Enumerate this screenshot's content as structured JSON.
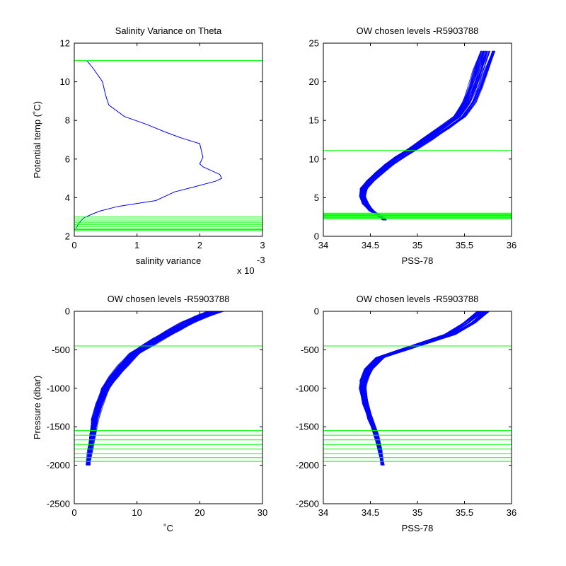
{
  "colors": {
    "profile": "#0000ff",
    "level": "#00ff00",
    "axis": "#000000",
    "background": "#ffffff"
  },
  "chart_data": [
    {
      "type": "line",
      "title": "Salinity Variance on Theta",
      "xlabel": "salinity variance",
      "ylabel": "Potential temp (˚C)",
      "x_multiplier": "x 10",
      "x_multiplier_exp": "-3",
      "xlim": [
        0,
        0.003
      ],
      "ylim": [
        2,
        12
      ],
      "xticks": [
        0,
        0.001,
        0.002,
        0.003
      ],
      "xtick_labels": [
        "0",
        "1",
        "2",
        "3"
      ],
      "yticks": [
        2,
        4,
        6,
        8,
        10,
        12
      ],
      "ytick_labels": [
        "2",
        "4",
        "6",
        "8",
        "10",
        "12"
      ],
      "grid": false,
      "series": [
        {
          "kind": "line",
          "x": [
            2e-05,
            8e-05,
            0.00015,
            0.00025,
            0.0004,
            0.0007,
            0.0011,
            0.0013,
            0.0016,
            0.0019,
            0.00225,
            0.00235,
            0.00232,
            0.00205,
            0.002,
            0.00205,
            0.002,
            0.0017,
            0.00145,
            0.00115,
            0.0008,
            0.00055,
            0.0005,
            0.00045,
            0.0003,
            0.0002
          ],
          "y": [
            2.4,
            2.7,
            2.95,
            3.1,
            3.3,
            3.55,
            3.75,
            3.85,
            4.3,
            4.55,
            4.85,
            5.0,
            5.2,
            5.6,
            5.75,
            6.1,
            6.8,
            7.1,
            7.4,
            7.8,
            8.2,
            8.8,
            9.3,
            10.0,
            10.7,
            11.1
          ]
        }
      ],
      "hlines": [
        11.1,
        3.0,
        2.9,
        2.8,
        2.7,
        2.6,
        2.5,
        2.4,
        2.35,
        2.3
      ]
    },
    {
      "type": "line",
      "title": "OW chosen levels -R5903788",
      "xlabel": "PSS-78",
      "ylabel": "",
      "xlim": [
        34,
        36
      ],
      "ylim": [
        0,
        25
      ],
      "xticks": [
        34,
        34.5,
        35,
        35.5,
        36
      ],
      "xtick_labels": [
        "34",
        "34.5",
        "35",
        "35.5",
        "36"
      ],
      "yticks": [
        0,
        5,
        10,
        15,
        20,
        25
      ],
      "ytick_labels": [
        "0",
        "5",
        "10",
        "15",
        "20",
        "25"
      ],
      "grid": false,
      "series": [
        {
          "kind": "profile-bundle",
          "x": [
            34.65,
            34.6,
            34.52,
            34.45,
            34.42,
            34.43,
            34.5,
            34.6,
            34.7,
            34.82,
            34.95,
            35.1,
            35.28,
            35.45,
            35.55,
            35.62,
            35.68,
            35.75
          ],
          "y": [
            2.1,
            2.6,
            3.3,
            4.2,
            5.2,
            6.2,
            7.2,
            8.3,
            9.3,
            10.3,
            11.3,
            12.5,
            14.0,
            15.5,
            17.3,
            19.3,
            21.5,
            24.0
          ],
          "profiles": 60,
          "jitter": 0.05
        }
      ],
      "hlines": [
        11.1,
        3.0,
        2.9,
        2.8,
        2.7,
        2.6,
        2.5,
        2.4,
        2.35,
        2.3
      ]
    },
    {
      "type": "line",
      "title": "OW chosen levels -R5903788",
      "xlabel": "˚C",
      "ylabel": "Pressure (dbar)",
      "xlim": [
        0,
        30
      ],
      "ylim": [
        -2500,
        0
      ],
      "xticks": [
        0,
        10,
        20,
        30
      ],
      "xtick_labels": [
        "0",
        "10",
        "20",
        "30"
      ],
      "yticks": [
        -2500,
        -2000,
        -1500,
        -1000,
        -500,
        0
      ],
      "ytick_labels": [
        "-2500",
        "-2000",
        "-1500",
        "-1000",
        "-500",
        "0"
      ],
      "grid": false,
      "series": [
        {
          "kind": "profile-bundle",
          "x": [
            2.2,
            2.5,
            2.9,
            3.3,
            4.0,
            5.0,
            6.3,
            7.8,
            9.5,
            11.5,
            13.5,
            15.8,
            18.0,
            20.5,
            22.5
          ],
          "y": [
            -2000,
            -1800,
            -1600,
            -1400,
            -1200,
            -1000,
            -850,
            -700,
            -550,
            -450,
            -350,
            -250,
            -150,
            -60,
            0
          ],
          "profiles": 60,
          "jitter": 0.8
        }
      ],
      "hlines": [
        -450,
        -1550,
        -1610,
        -1670,
        -1730,
        -1790,
        -1850,
        -1900,
        -1950
      ]
    },
    {
      "type": "line",
      "title": "OW chosen levels -R5903788",
      "xlabel": "PSS-78",
      "ylabel": "",
      "xlim": [
        34,
        36
      ],
      "ylim": [
        -2500,
        0
      ],
      "xticks": [
        34,
        34.5,
        35,
        35.5,
        36
      ],
      "xtick_labels": [
        "34",
        "34.5",
        "35",
        "35.5",
        "36"
      ],
      "yticks": [
        -2500,
        -2000,
        -1500,
        -1000,
        -500,
        0
      ],
      "ytick_labels": [
        "-2500",
        "-2000",
        "-1500",
        "-1000",
        "-500",
        "0"
      ],
      "grid": false,
      "series": [
        {
          "kind": "profile-bundle",
          "x": [
            34.63,
            34.6,
            34.56,
            34.5,
            34.45,
            34.42,
            34.43,
            34.48,
            34.6,
            34.85,
            35.1,
            35.35,
            35.55,
            35.7
          ],
          "y": [
            -2000,
            -1800,
            -1600,
            -1400,
            -1200,
            -1000,
            -900,
            -750,
            -600,
            -500,
            -400,
            -300,
            -150,
            0
          ],
          "profiles": 60,
          "jitter": 0.04
        }
      ],
      "hlines": [
        -450,
        -1550,
        -1610,
        -1670,
        -1730,
        -1790,
        -1850,
        -1900,
        -1950
      ]
    }
  ]
}
